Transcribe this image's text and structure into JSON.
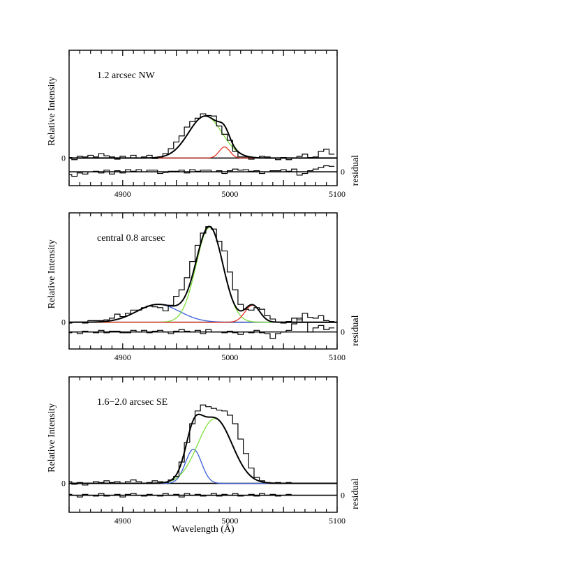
{
  "chart_data": [
    {
      "type": "line",
      "panel_label": "1.2  arcsec  NW",
      "ylabel": "Relative  Intensity",
      "right_label": "residual",
      "xlabel": "",
      "xlim": [
        4850,
        5100
      ],
      "ylim": [
        -0.5,
        1.95
      ],
      "xticks": [
        4900,
        5000,
        5100
      ],
      "ytick_left": "0",
      "ytick_right": "0",
      "residual_offset": -0.25,
      "data_step": {
        "x": [
          4850,
          4855,
          4860,
          4865,
          4870,
          4875,
          4880,
          4885,
          4890,
          4895,
          4900,
          4905,
          4910,
          4915,
          4920,
          4925,
          4930,
          4935,
          4940,
          4945,
          4950,
          4955,
          4960,
          4965,
          4970,
          4975,
          4980,
          4985,
          4990,
          4995,
          5000,
          5005,
          5010,
          5015,
          5020,
          5025,
          5030,
          5035,
          5040,
          5045,
          5050,
          5055,
          5060,
          5065,
          5070,
          5075,
          5080,
          5085,
          5090,
          5095
        ],
        "y": [
          0.01,
          -0.03,
          0.03,
          0.02,
          0.05,
          0.02,
          0.08,
          0.04,
          0.02,
          -0.02,
          0.03,
          0.0,
          0.05,
          0.0,
          0.02,
          0.05,
          -0.01,
          0.02,
          0.08,
          0.17,
          0.29,
          0.4,
          0.56,
          0.66,
          0.72,
          0.8,
          0.77,
          0.76,
          0.58,
          0.43,
          0.32,
          0.12,
          0.02,
          0.02,
          -0.02,
          0.01,
          0.03,
          0.02,
          0.0,
          -0.03,
          0.01,
          -0.03,
          0.0,
          0.03,
          0.07,
          0.01,
          0.02,
          0.12,
          0.16,
          0.07
        ]
      },
      "residual_step": {
        "x": [
          4850,
          4855,
          4860,
          4865,
          4870,
          4875,
          4880,
          4885,
          4890,
          4895,
          4900,
          4905,
          4910,
          4915,
          4920,
          4925,
          4930,
          4935,
          4940,
          4945,
          4950,
          4955,
          4960,
          4965,
          4970,
          4975,
          4980,
          4985,
          4990,
          4995,
          5000,
          5005,
          5010,
          5015,
          5020,
          5025,
          5030,
          5035,
          5040,
          5045,
          5050,
          5055,
          5060,
          5065,
          5070,
          5075,
          5080,
          5085,
          5090,
          5095
        ],
        "y": [
          -0.05,
          -0.08,
          -0.02,
          -0.04,
          0.0,
          0.01,
          -0.02,
          0.03,
          -0.04,
          0.02,
          -0.02,
          0.04,
          0.01,
          0.04,
          0.0,
          0.03,
          0.03,
          -0.03,
          -0.01,
          0.01,
          0.01,
          0.03,
          -0.02,
          0.04,
          0.01,
          0.03,
          0.03,
          0.0,
          0.02,
          -0.03,
          0.02,
          0.05,
          0.03,
          0.04,
          0.01,
          0.02,
          -0.03,
          0.0,
          0.02,
          0.02,
          0.04,
          0.01,
          0.05,
          -0.06,
          -0.03,
          0.02,
          0.05,
          0.08,
          0.11,
          0.1
        ]
      },
      "components": [
        {
          "color": "#7de03c",
          "amplitude": 0.76,
          "center": 4977,
          "sigma": 15.5
        },
        {
          "color": "#e63324",
          "amplitude": 0.2,
          "center": 4995,
          "sigma": 5
        }
      ],
      "total_color": "#000000"
    },
    {
      "type": "line",
      "panel_label": "central  0.8  arcsec",
      "ylabel": "Relative  Intensity",
      "right_label": "residual",
      "xlabel": "",
      "xlim": [
        4850,
        5100
      ],
      "ylim": [
        -0.33,
        1.35
      ],
      "xticks": [
        4900,
        5000,
        5100
      ],
      "ytick_left": "0",
      "ytick_right": "0",
      "residual_offset": -0.12,
      "data_step": {
        "x": [
          4850,
          4855,
          4860,
          4865,
          4870,
          4875,
          4880,
          4885,
          4890,
          4895,
          4900,
          4905,
          4910,
          4915,
          4920,
          4925,
          4930,
          4935,
          4940,
          4945,
          4950,
          4955,
          4960,
          4965,
          4970,
          4975,
          4980,
          4985,
          4990,
          4995,
          5000,
          5005,
          5010,
          5015,
          5020,
          5025,
          5030,
          5035,
          5040,
          5045,
          5050,
          5055,
          5060,
          5065,
          5070,
          5075,
          5080,
          5085,
          5090,
          5095
        ],
        "y": [
          -0.01,
          0.0,
          0.0,
          -0.01,
          0.02,
          0.02,
          0.02,
          0.03,
          0.05,
          0.1,
          0.07,
          0.11,
          0.15,
          0.15,
          0.18,
          0.2,
          0.19,
          0.18,
          0.14,
          0.21,
          0.32,
          0.4,
          0.55,
          0.75,
          0.95,
          1.1,
          1.18,
          1.15,
          1.0,
          0.88,
          0.62,
          0.4,
          0.22,
          0.16,
          0.15,
          0.18,
          0.16,
          0.08,
          0.04,
          0.0,
          -0.01,
          0.01,
          0.05,
          0.03,
          0.11,
          0.06,
          0.05,
          0.08,
          0.02,
          0.01
        ]
      },
      "residual_step": {
        "x": [
          4850,
          4855,
          4860,
          4865,
          4870,
          4875,
          4880,
          4885,
          4890,
          4895,
          4900,
          4905,
          4910,
          4915,
          4920,
          4925,
          4930,
          4935,
          4940,
          4945,
          4950,
          4955,
          4960,
          4965,
          4970,
          4975,
          4980,
          4985,
          4990,
          4995,
          5000,
          5005,
          5010,
          5015,
          5020,
          5025,
          5030,
          5035,
          5040,
          5045,
          5050,
          5055,
          5060,
          5065,
          5070,
          5075,
          5080,
          5085,
          5090,
          5095
        ],
        "y": [
          -0.01,
          0.0,
          -0.02,
          0.01,
          0.0,
          -0.01,
          0.02,
          -0.01,
          0.01,
          0.01,
          -0.01,
          -0.01,
          0.02,
          0.0,
          0.02,
          -0.01,
          0.01,
          0.02,
          0.0,
          -0.02,
          0.01,
          0.03,
          0.01,
          0.0,
          0.02,
          -0.02,
          0.03,
          0.0,
          0.0,
          -0.01,
          0.01,
          -0.01,
          -0.03,
          0.0,
          -0.01,
          0.02,
          -0.01,
          -0.02,
          -0.08,
          -0.02,
          0.0,
          0.02,
          0.1,
          0.17,
          0.12,
          0.0,
          0.05,
          0.08,
          0.03,
          0.05
        ]
      },
      "components": [
        {
          "color": "#3a5fd9",
          "amplitude": 0.22,
          "center": 4933,
          "sigma": 20
        },
        {
          "color": "#7de03c",
          "amplitude": 1.17,
          "center": 4981,
          "sigma": 12.5
        },
        {
          "color": "#e63324",
          "amplitude": 0.21,
          "center": 5021,
          "sigma": 7
        }
      ],
      "total_color": "#000000"
    },
    {
      "type": "line",
      "panel_label": "1.6−2.0  arcsec  SE",
      "ylabel": "Relative  Intensity",
      "right_label": "residual",
      "xlabel": "Wavelength  (Å)",
      "xlim": [
        4850,
        5100
      ],
      "ylim": [
        -0.34,
        1.25
      ],
      "xticks": [
        4900,
        5000,
        5100
      ],
      "ytick_left": "0",
      "ytick_right": "0",
      "residual_offset": -0.14,
      "data_step": {
        "x": [
          4850,
          4855,
          4860,
          4865,
          4870,
          4875,
          4880,
          4885,
          4890,
          4895,
          4900,
          4905,
          4910,
          4915,
          4920,
          4925,
          4930,
          4935,
          4940,
          4945,
          4950,
          4955,
          4960,
          4965,
          4970,
          4975,
          4980,
          4985,
          4990,
          4995,
          5000,
          5005,
          5010,
          5015,
          5020,
          5025,
          5030,
          5035,
          5040,
          5045,
          5050,
          5055
        ],
        "y": [
          0.02,
          -0.01,
          0.01,
          -0.02,
          0.0,
          0.02,
          0.01,
          0.03,
          0.01,
          0.02,
          0.0,
          0.02,
          0.04,
          0.02,
          0.0,
          0.01,
          0.03,
          0.02,
          0.01,
          0.04,
          0.08,
          0.25,
          0.48,
          0.7,
          0.85,
          0.92,
          0.9,
          0.88,
          0.86,
          0.85,
          0.8,
          0.7,
          0.52,
          0.35,
          0.18,
          0.07,
          0.03,
          0.01,
          0.0,
          0.01,
          0.0,
          0.01
        ]
      },
      "residual_step": {
        "x": [
          4850,
          4855,
          4860,
          4865,
          4870,
          4875,
          4880,
          4885,
          4890,
          4895,
          4900,
          4905,
          4910,
          4915,
          4920,
          4925,
          4930,
          4935,
          4940,
          4945,
          4950,
          4955,
          4960,
          4965,
          4970,
          4975,
          4980,
          4985,
          4990,
          4995,
          5000,
          5005,
          5010,
          5015,
          5020,
          5025,
          5030,
          5035,
          5040,
          5045,
          5050,
          5055
        ],
        "y": [
          0.01,
          0.0,
          -0.02,
          0.01,
          0.0,
          -0.01,
          0.02,
          -0.01,
          0.0,
          0.01,
          -0.02,
          0.01,
          0.02,
          0.0,
          -0.01,
          0.01,
          0.0,
          -0.01,
          0.02,
          0.0,
          0.01,
          -0.02,
          0.02,
          0.0,
          0.01,
          -0.01,
          0.0,
          0.02,
          -0.01,
          0.01,
          0.0,
          0.02,
          -0.01,
          0.0,
          0.01,
          -0.01,
          0.02,
          0.0,
          0.01,
          -0.01,
          0.0,
          0.01
        ]
      },
      "components": [
        {
          "color": "#3a5fd9",
          "amplitude": 0.4,
          "center": 4966,
          "sigma": 7.5
        },
        {
          "color": "#7de03c",
          "amplitude": 0.76,
          "center": 4986,
          "sigma": 16
        }
      ],
      "total_color": "#000000"
    }
  ]
}
